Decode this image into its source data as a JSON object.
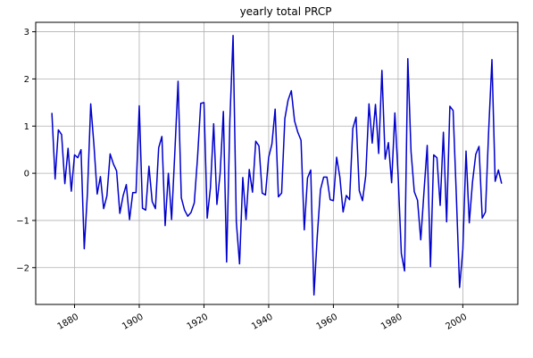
{
  "chart_data": {
    "type": "line",
    "title": "yearly total PRCP",
    "xlabel": "",
    "ylabel": "",
    "xlim": [
      1868,
      2017
    ],
    "ylim": [
      -2.78,
      3.2
    ],
    "grid": true,
    "x_ticks": [
      1880,
      1900,
      1920,
      1940,
      1960,
      1980,
      2000
    ],
    "x_tick_labels": [
      "1880",
      "1900",
      "1920",
      "1940",
      "1960",
      "1980",
      "2000"
    ],
    "y_ticks": [
      3,
      2,
      1,
      0,
      -1,
      -2
    ],
    "y_tick_labels": [
      "3",
      "2",
      "1",
      "0",
      "−1",
      "−2"
    ],
    "colors": {
      "line": "#0000cc",
      "grid": "#b0b0b0",
      "axes": "#000000"
    },
    "series": [
      {
        "x": [
          1873,
          1874,
          1875,
          1876,
          1877,
          1878,
          1879,
          1880,
          1881,
          1882,
          1883,
          1884,
          1885,
          1886,
          1887,
          1888,
          1889,
          1890,
          1891,
          1892,
          1893,
          1894,
          1895,
          1896,
          1897,
          1898,
          1899,
          1900,
          1901,
          1902,
          1903,
          1904,
          1905,
          1906,
          1907,
          1908,
          1909,
          1910,
          1911,
          1912,
          1913,
          1914,
          1915,
          1916,
          1917,
          1918,
          1919,
          1920,
          1921,
          1922,
          1923,
          1924,
          1925,
          1926,
          1927,
          1928,
          1929,
          1930,
          1931,
          1932,
          1933,
          1934,
          1935,
          1936,
          1937,
          1938,
          1939,
          1940,
          1941,
          1942,
          1943,
          1944,
          1945,
          1946,
          1947,
          1948,
          1949,
          1950,
          1951,
          1952,
          1953,
          1954,
          1955,
          1956,
          1957,
          1958,
          1959,
          1960,
          1961,
          1962,
          1963,
          1964,
          1965,
          1966,
          1967,
          1968,
          1969,
          1970,
          1971,
          1972,
          1973,
          1974,
          1975,
          1976,
          1977,
          1978,
          1979,
          1980,
          1981,
          1982,
          1983,
          1984,
          1985,
          1986,
          1987,
          1988,
          1989,
          1990,
          1991,
          1992,
          1993,
          1994,
          1995,
          1996,
          1997,
          1998,
          1999,
          2000,
          2001,
          2002,
          2003,
          2004,
          2005,
          2006,
          2007,
          2008,
          2009,
          2010,
          2011,
          2012
        ],
        "values": [
          1.28,
          -0.12,
          0.92,
          0.82,
          -0.22,
          0.53,
          -0.38,
          0.39,
          0.33,
          0.5,
          -1.6,
          -0.4,
          1.47,
          0.6,
          -0.44,
          -0.07,
          -0.75,
          -0.48,
          0.41,
          0.2,
          0.05,
          -0.85,
          -0.48,
          -0.24,
          -0.98,
          -0.41,
          -0.41,
          1.43,
          -0.74,
          -0.78,
          0.15,
          -0.6,
          -0.75,
          0.54,
          0.78,
          -1.11,
          0.0,
          -0.98,
          0.45,
          1.95,
          -0.52,
          -0.78,
          -0.91,
          -0.83,
          -0.63,
          0.32,
          1.48,
          1.5,
          -0.95,
          -0.31,
          1.05,
          -0.66,
          0.0,
          1.31,
          -1.88,
          1.1,
          2.92,
          -1.03,
          -1.92,
          -0.09,
          -0.98,
          0.08,
          -0.4,
          0.68,
          0.58,
          -0.42,
          -0.46,
          0.34,
          0.62,
          1.36,
          -0.5,
          -0.42,
          1.16,
          1.55,
          1.75,
          1.11,
          0.87,
          0.7,
          -1.2,
          -0.1,
          0.07,
          -2.58,
          -1.35,
          -0.35,
          -0.08,
          -0.08,
          -0.56,
          -0.58,
          0.34,
          -0.08,
          -0.82,
          -0.47,
          -0.56,
          0.95,
          1.19,
          -0.37,
          -0.58,
          -0.05,
          1.47,
          0.64,
          1.46,
          0.42,
          2.18,
          0.3,
          0.65,
          -0.2,
          1.28,
          -0.04,
          -1.7,
          -2.07,
          2.43,
          0.46,
          -0.39,
          -0.57,
          -1.41,
          -0.39,
          0.59,
          -1.98,
          0.39,
          0.33,
          -0.68,
          0.87,
          -1.03,
          1.42,
          1.33,
          -0.48,
          -2.42,
          -1.62,
          0.47,
          -1.05,
          -0.18,
          0.4,
          0.57,
          -0.95,
          -0.82,
          0.92,
          2.41,
          -0.17,
          0.07,
          -0.22
        ]
      }
    ]
  }
}
